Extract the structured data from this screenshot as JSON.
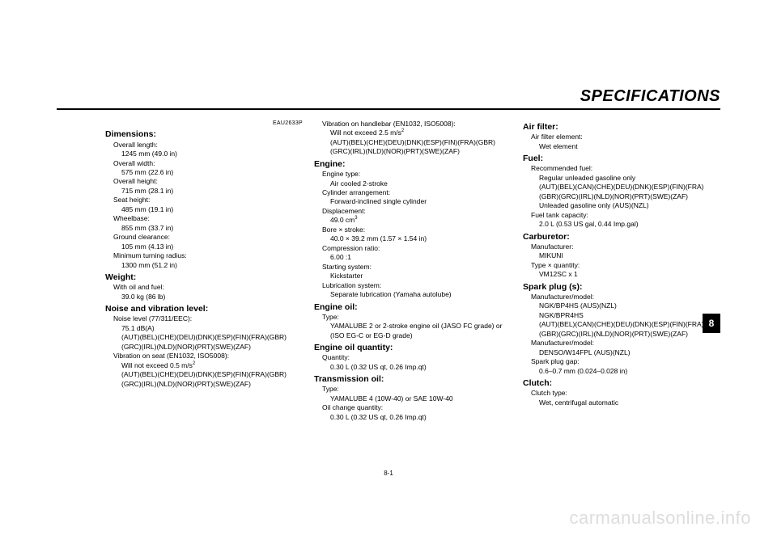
{
  "doc": {
    "eau_code": "EAU2633P",
    "header_title": "SPECIFICATIONS",
    "chapter_number": "8",
    "page_number": "8-1",
    "watermark": "carmanualsonline.info"
  },
  "col1": {
    "dimensions": {
      "title": "Dimensions:",
      "overall_length_label": "Overall length:",
      "overall_length_value": "1245 mm (49.0 in)",
      "overall_width_label": "Overall width:",
      "overall_width_value": "575 mm (22.6 in)",
      "overall_height_label": "Overall height:",
      "overall_height_value": "715 mm (28.1 in)",
      "seat_height_label": "Seat height:",
      "seat_height_value": "485 mm (19.1 in)",
      "wheelbase_label": "Wheelbase:",
      "wheelbase_value": "855 mm (33.7 in)",
      "ground_clearance_label": "Ground clearance:",
      "ground_clearance_value": "105 mm (4.13 in)",
      "min_turn_label": "Minimum turning radius:",
      "min_turn_value": "1300 mm (51.2 in)"
    },
    "weight": {
      "title": "Weight:",
      "with_oil_label": "With oil and fuel:",
      "with_oil_value": "39.0 kg (86 lb)"
    },
    "noise": {
      "title": "Noise and vibration level:",
      "noise_level_label": "Noise level (77/311/EEC):",
      "noise_level_value1": "75.1 dB(A)",
      "noise_level_value2": "(AUT)(BEL)(CHE)(DEU)(DNK)(ESP)(FIN)(FRA)(GBR)(GRC)(IRL)(NLD)(NOR)(PRT)(SWE)(ZAF)",
      "vib_seat_label": "Vibration on seat (EN1032, ISO5008):",
      "vib_seat_value_pre": "Will not exceed 0.5 m/s",
      "vib_seat_value_sup": "2",
      "vib_seat_value2": "(AUT)(BEL)(CHE)(DEU)(DNK)(ESP)(FIN)(FRA)(GBR)(GRC)(IRL)(NLD)(NOR)(PRT)(SWE)(ZAF)"
    }
  },
  "col2": {
    "vib_handlebar_label": "Vibration on handlebar (EN1032, ISO5008):",
    "vib_handlebar_value_pre": "Will not exceed 2.5 m/s",
    "vib_handlebar_value_sup": "2",
    "vib_handlebar_value2": "(AUT)(BEL)(CHE)(DEU)(DNK)(ESP)(FIN)(FRA)(GBR)(GRC)(IRL)(NLD)(NOR)(PRT)(SWE)(ZAF)",
    "engine": {
      "title": "Engine:",
      "type_label": "Engine type:",
      "type_value": "Air cooled 2-stroke",
      "cyl_arr_label": "Cylinder arrangement:",
      "cyl_arr_value": "Forward-inclined single cylinder",
      "disp_label": "Displacement:",
      "disp_value_pre": "49.0 cm",
      "disp_value_sup": "3",
      "bore_label": "Bore × stroke:",
      "bore_value": "40.0 × 39.2 mm (1.57 × 1.54 in)",
      "comp_label": "Compression ratio:",
      "comp_value": "6.00 :1",
      "start_label": "Starting system:",
      "start_value": "Kickstarter",
      "lube_label": "Lubrication system:",
      "lube_value": "Separate lubrication (Yamaha autolube)"
    },
    "engine_oil": {
      "title": "Engine oil:",
      "type_label": "Type:",
      "type_value": "YAMALUBE 2 or 2-stroke engine oil (JASO FC grade) or (ISO EG-C or EG-D grade)"
    },
    "engine_oil_qty": {
      "title": "Engine oil quantity:",
      "qty_label": "Quantity:",
      "qty_value": "0.30 L (0.32 US qt, 0.26 Imp.qt)"
    },
    "trans_oil": {
      "title": "Transmission oil:",
      "type_label": "Type:",
      "type_value": "YAMALUBE 4 (10W-40) or SAE 10W-40",
      "change_label": "Oil change quantity:",
      "change_value": "0.30 L (0.32 US qt, 0.26 Imp.qt)"
    }
  },
  "col3": {
    "air_filter": {
      "title": "Air filter:",
      "elem_label": "Air filter element:",
      "elem_value": "Wet element"
    },
    "fuel": {
      "title": "Fuel:",
      "rec_label": "Recommended fuel:",
      "rec_value1": "Regular unleaded gasoline only",
      "rec_value2": "(AUT)(BEL)(CAN)(CHE)(DEU)(DNK)(ESP)(FIN)(FRA)(GBR)(GRC)(IRL)(NLD)(NOR)(PRT)(SWE)(ZAF)",
      "rec_value3": "Unleaded gasoline only (AUS)(NZL)",
      "cap_label": "Fuel tank capacity:",
      "cap_value": "2.0 L (0.53 US gal, 0.44 Imp.gal)"
    },
    "carburetor": {
      "title": "Carburetor:",
      "mfr_label": "Manufacturer:",
      "mfr_value": "MIKUNI",
      "type_label": "Type × quantity:",
      "type_value": "VM12SC x 1"
    },
    "spark": {
      "title": "Spark plug (s):",
      "mm1_label": "Manufacturer/model:",
      "mm1_value1": "NGK/BP4HS (AUS)(NZL)",
      "mm1_value2": "NGK/BPR4HS",
      "mm1_value3": "(AUT)(BEL)(CAN)(CHE)(DEU)(DNK)(ESP)(FIN)(FRA)(GBR)(GRC)(IRL)(NLD)(NOR)(PRT)(SWE)(ZAF)",
      "mm2_label": "Manufacturer/model:",
      "mm2_value": "DENSO/W14FPL (AUS)(NZL)",
      "gap_label": "Spark plug gap:",
      "gap_value": "0.6–0.7 mm (0.024–0.028 in)"
    },
    "clutch": {
      "title": "Clutch:",
      "type_label": "Clutch type:",
      "type_value": "Wet, centrifugal automatic"
    }
  }
}
